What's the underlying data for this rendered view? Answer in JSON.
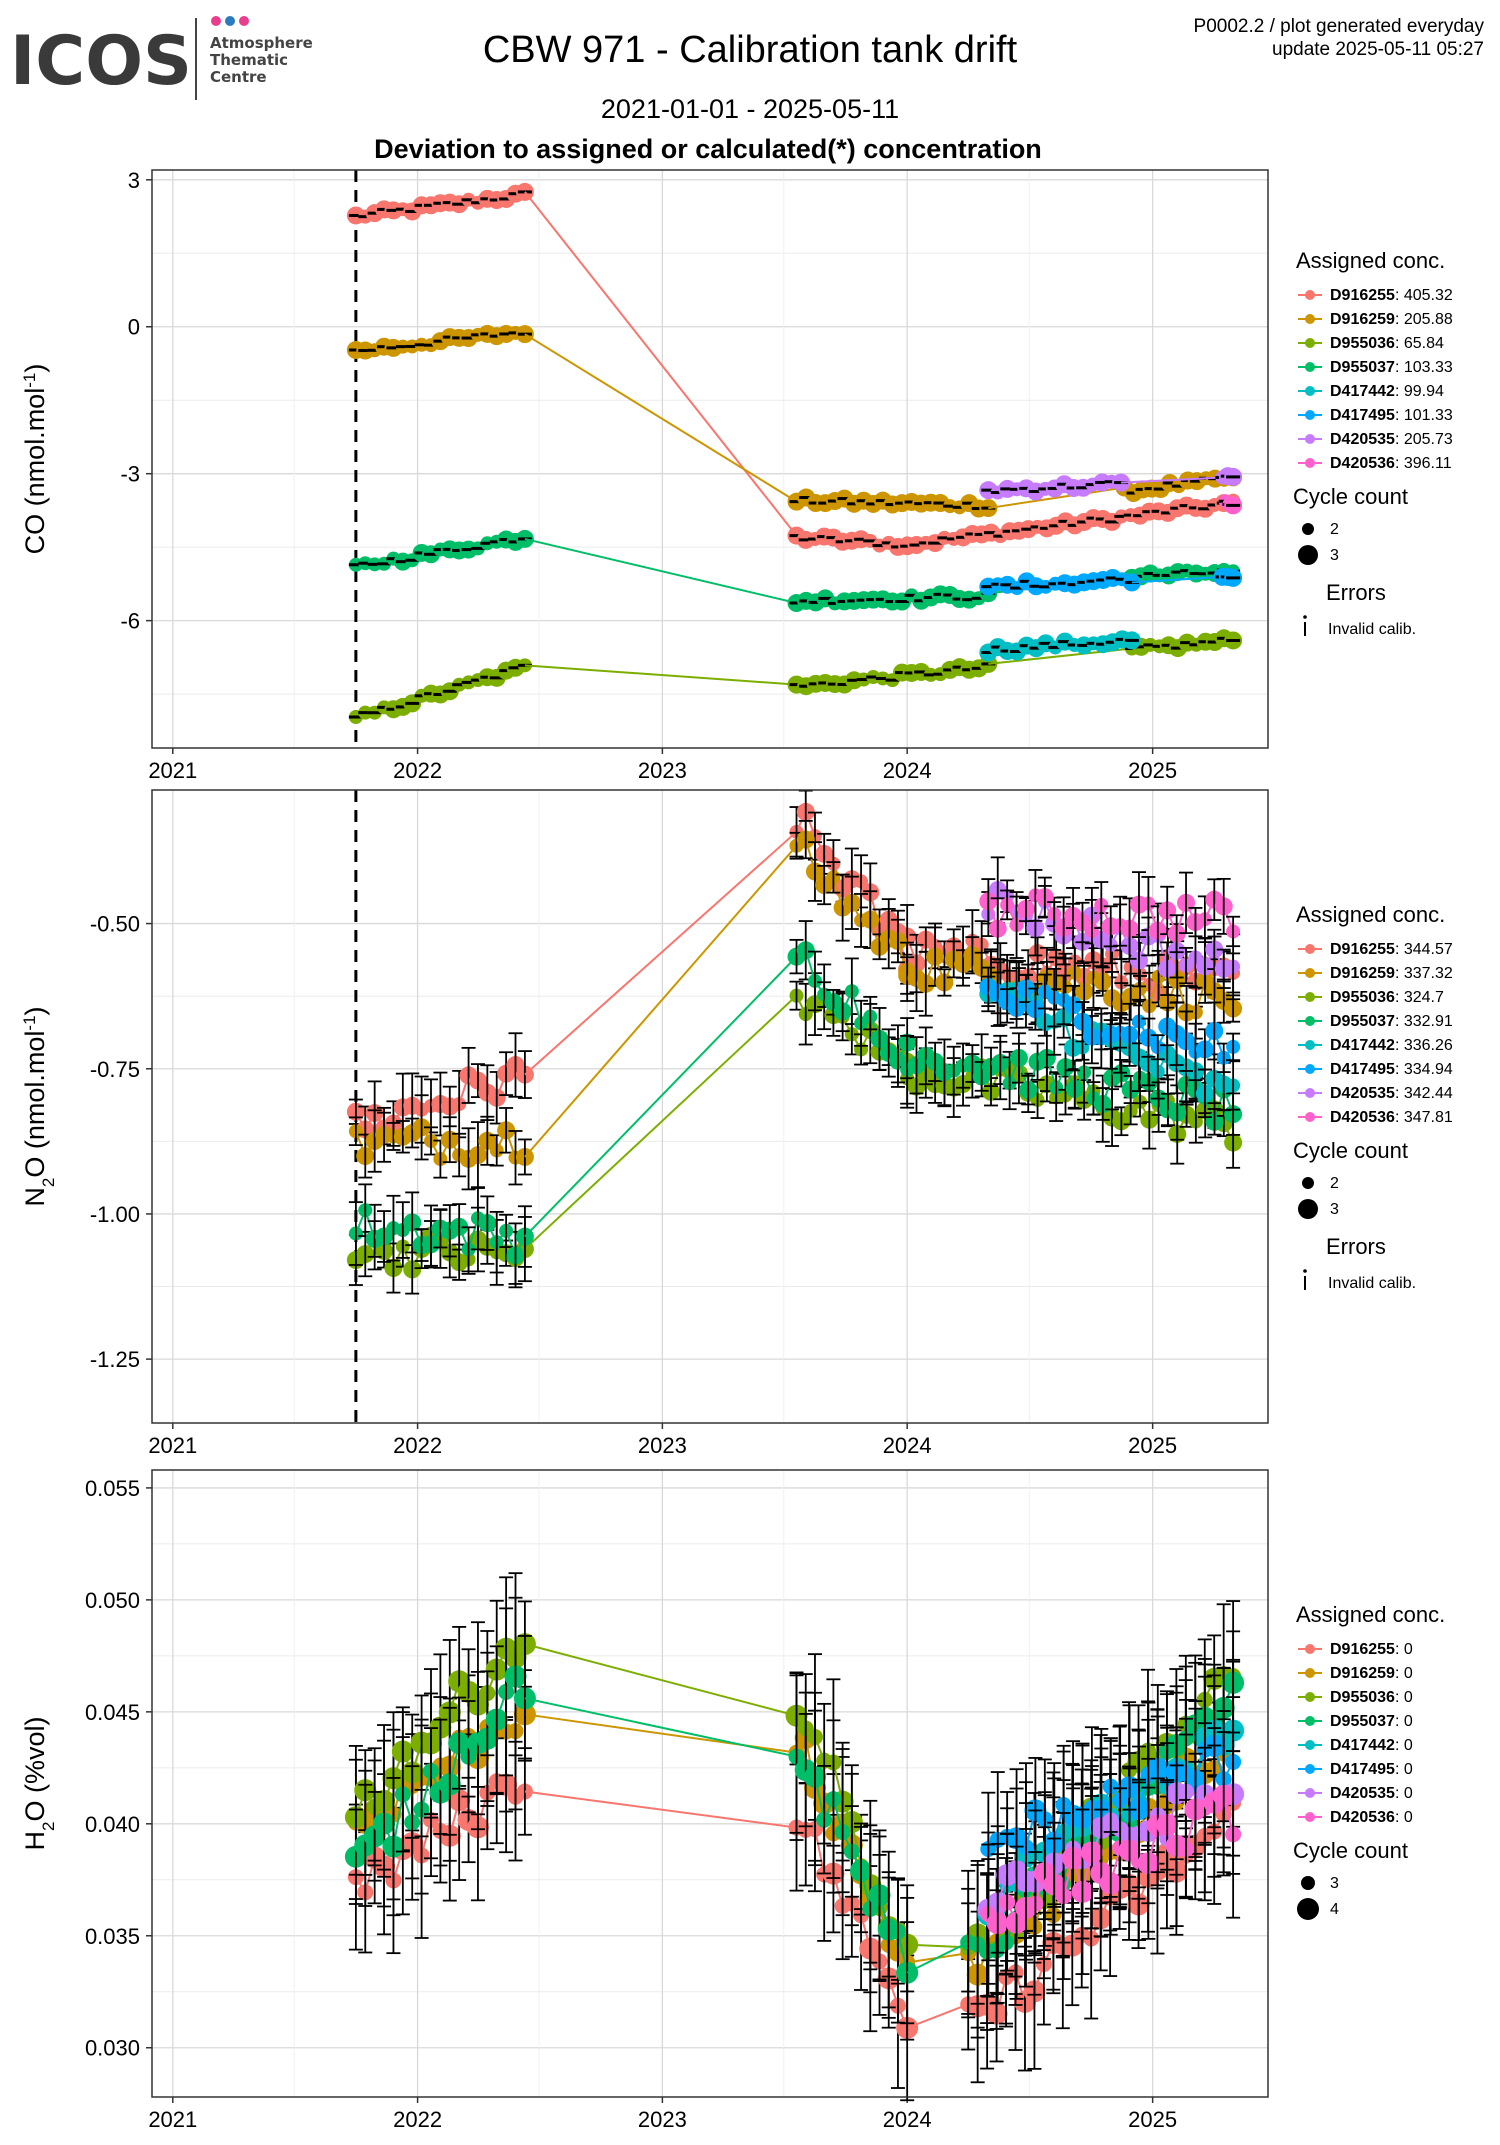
{
  "header": {
    "logo_word": "ICOS",
    "logo_sub": [
      "Atmosphere",
      "Thematic",
      "Centre"
    ],
    "title": "CBW 971 - Calibration tank drift",
    "date_range": "2021-01-01 - 2025-05-11",
    "subtitle": "Deviation to assigned or calculated(*) concentration",
    "meta_line1": "P0002.2 / plot generated everyday",
    "meta_line2": "update  2025-05-11 05:27"
  },
  "colors": {
    "D916255": "#F8766D",
    "D916259": "#CD9600",
    "D955036": "#7CAE00",
    "D955037": "#00BE67",
    "D417442": "#00BFC4",
    "D417495": "#00A9FF",
    "D420535": "#C77CFF",
    "D420536": "#FF61CC"
  },
  "legend_labels": {
    "assigned": "Assigned conc.",
    "cycle": "Cycle count",
    "errors": "Errors",
    "invalid": "Invalid calib."
  },
  "chart_data": [
    {
      "type": "scatter",
      "panel": "CO",
      "ylabel_main": "CO (nmol.mol",
      "ylabel_sup": "-1",
      "ylabel_close": ")",
      "x_ticks": [
        "2021",
        "2022",
        "2023",
        "2024",
        "2025"
      ],
      "x_range": [
        "2021-01-01",
        "2025-05-11"
      ],
      "y_ticks": [
        3,
        0,
        -3,
        -6
      ],
      "y_tick_labels": [
        "3",
        "0",
        "-3",
        "-6"
      ],
      "ylim": [
        -8.6,
        3.2
      ],
      "vline": "2021-10-01",
      "grid": true,
      "legend_position": "right",
      "cycle_counts": [
        "2",
        "3"
      ],
      "series": [
        {
          "name": "D916255",
          "assigned": "405.32",
          "segments": [
            [
              "2021-10-01",
              "2022-06-10",
              2.25,
              2.7
            ],
            [
              "2023-07-20",
              "2024-01-01",
              -4.3,
              -4.45
            ],
            [
              "2024-01-01",
              "2025-05-01",
              -4.45,
              -3.6
            ]
          ]
        },
        {
          "name": "D916259",
          "assigned": "205.88",
          "segments": [
            [
              "2021-10-01",
              "2022-06-10",
              -0.5,
              -0.1
            ],
            [
              "2023-07-20",
              "2024-05-01",
              -3.55,
              -3.65
            ],
            [
              "2024-11-20",
              "2025-05-01",
              -3.35,
              -3.1
            ]
          ]
        },
        {
          "name": "D955036",
          "assigned": "65.84",
          "segments": [
            [
              "2021-10-01",
              "2022-06-10",
              -8.0,
              -6.95
            ],
            [
              "2023-07-20",
              "2024-05-01",
              -7.35,
              -6.95
            ],
            [
              "2024-12-01",
              "2025-05-01",
              -6.6,
              -6.4
            ]
          ]
        },
        {
          "name": "D955037",
          "assigned": "103.33",
          "segments": [
            [
              "2021-10-01",
              "2022-06-10",
              -4.9,
              -4.3
            ],
            [
              "2023-07-20",
              "2024-05-01",
              -5.6,
              -5.5
            ],
            [
              "2024-12-01",
              "2025-05-01",
              -5.1,
              -5.0
            ]
          ]
        },
        {
          "name": "D417442",
          "assigned": "99.94",
          "segments": [
            [
              "2024-05-01",
              "2024-12-01",
              -6.6,
              -6.4
            ]
          ]
        },
        {
          "name": "D417495",
          "assigned": "101.33",
          "segments": [
            [
              "2024-05-01",
              "2024-12-01",
              -5.3,
              -5.15
            ],
            [
              "2025-04-15",
              "2025-05-01",
              -5.1,
              -5.1
            ]
          ]
        },
        {
          "name": "D420535",
          "assigned": "205.73",
          "segments": [
            [
              "2024-05-01",
              "2024-11-15",
              -3.35,
              -3.2
            ],
            [
              "2025-04-15",
              "2025-05-01",
              -3.1,
              -3.1
            ]
          ]
        },
        {
          "name": "D420536",
          "assigned": "396.11",
          "segments": [
            [
              "2025-04-20",
              "2025-05-01",
              -3.6,
              -3.6
            ]
          ]
        }
      ]
    },
    {
      "type": "scatter",
      "panel": "N2O",
      "ylabel_main": "N",
      "ylabel_sub": "2",
      "ylabel_rest": "O (nmol.mol",
      "ylabel_sup": "-1",
      "ylabel_close": ")",
      "x_ticks": [
        "2021",
        "2022",
        "2023",
        "2024",
        "2025"
      ],
      "x_range": [
        "2021-01-01",
        "2025-05-11"
      ],
      "y_ticks": [
        -0.5,
        -0.75,
        -1.0,
        -1.25
      ],
      "y_tick_labels": [
        "-0.50",
        "-0.75",
        "-1.00",
        "-1.25"
      ],
      "ylim": [
        -1.36,
        -0.27
      ],
      "vline": "2021-10-01",
      "grid": true,
      "legend_position": "right",
      "cycle_counts": [
        "2",
        "3"
      ],
      "series": [
        {
          "name": "D916255",
          "assigned": "344.57",
          "segments": [
            [
              "2021-10-01",
              "2022-06-10",
              -0.85,
              -0.76
            ],
            [
              "2023-07-20",
              "2024-01-01",
              -0.32,
              -0.55
            ],
            [
              "2024-01-01",
              "2025-05-01",
              -0.55,
              -0.6
            ]
          ]
        },
        {
          "name": "D916259",
          "assigned": "337.32",
          "segments": [
            [
              "2021-10-01",
              "2022-06-10",
              -0.88,
              -0.87
            ],
            [
              "2023-07-20",
              "2024-01-01",
              -0.37,
              -0.57
            ],
            [
              "2024-01-01",
              "2025-05-01",
              -0.57,
              -0.63
            ]
          ]
        },
        {
          "name": "D955036",
          "assigned": "324.7",
          "segments": [
            [
              "2021-10-01",
              "2022-06-10",
              -1.06,
              -1.07
            ],
            [
              "2023-07-20",
              "2024-01-01",
              -0.62,
              -0.75
            ],
            [
              "2024-01-01",
              "2025-05-01",
              -0.75,
              -0.85
            ]
          ]
        },
        {
          "name": "D955037",
          "assigned": "332.91",
          "segments": [
            [
              "2021-10-01",
              "2022-06-10",
              -1.02,
              -1.04
            ],
            [
              "2023-07-20",
              "2024-01-01",
              -0.55,
              -0.72
            ],
            [
              "2024-01-01",
              "2025-05-01",
              -0.72,
              -0.82
            ]
          ]
        },
        {
          "name": "D417442",
          "assigned": "336.26",
          "segments": [
            [
              "2024-05-01",
              "2025-05-01",
              -0.62,
              -0.8
            ]
          ]
        },
        {
          "name": "D417495",
          "assigned": "334.94",
          "segments": [
            [
              "2024-05-01",
              "2025-05-01",
              -0.62,
              -0.72
            ]
          ]
        },
        {
          "name": "D420535",
          "assigned": "342.44",
          "segments": [
            [
              "2024-05-01",
              "2025-05-01",
              -0.46,
              -0.58
            ]
          ]
        },
        {
          "name": "D420536",
          "assigned": "347.81",
          "segments": [
            [
              "2024-05-01",
              "2025-05-01",
              -0.48,
              -0.49
            ]
          ]
        }
      ]
    },
    {
      "type": "scatter",
      "panel": "H2O",
      "ylabel_main": "H",
      "ylabel_sub": "2",
      "ylabel_rest": "O (%vol)",
      "x_ticks": [
        "2021",
        "2022",
        "2023",
        "2024",
        "2025"
      ],
      "x_range": [
        "2021-01-01",
        "2025-05-11"
      ],
      "y_ticks": [
        0.055,
        0.05,
        0.045,
        0.04,
        0.035,
        0.03
      ],
      "y_tick_labels": [
        "0.055",
        "0.050",
        "0.045",
        "0.040",
        "0.035",
        "0.030"
      ],
      "ylim": [
        0.0278,
        0.0558
      ],
      "grid": true,
      "legend_position": "right",
      "cycle_counts": [
        "3",
        "4"
      ],
      "series": [
        {
          "name": "D916255",
          "assigned": "0",
          "segments": [
            [
              "2021-10-01",
              "2022-06-10",
              0.037,
              0.0422
            ],
            [
              "2023-07-20",
              "2024-01-01",
              0.0405,
              0.0315
            ],
            [
              "2024-04-01",
              "2025-05-01",
              0.031,
              0.0403
            ]
          ]
        },
        {
          "name": "D916259",
          "assigned": "0",
          "segments": [
            [
              "2021-10-01",
              "2022-06-10",
              0.04,
              0.0452
            ],
            [
              "2023-07-20",
              "2024-01-01",
              0.044,
              0.0335
            ],
            [
              "2024-04-01",
              "2025-05-01",
              0.0335,
              0.044
            ]
          ]
        },
        {
          "name": "D955036",
          "assigned": "0",
          "segments": [
            [
              "2021-10-01",
              "2022-06-10",
              0.0405,
              0.0485
            ],
            [
              "2023-07-20",
              "2024-01-01",
              0.0458,
              0.0338
            ],
            [
              "2024-04-01",
              "2025-05-01",
              0.0338,
              0.0465
            ]
          ]
        },
        {
          "name": "D955037",
          "assigned": "0",
          "segments": [
            [
              "2021-10-01",
              "2022-06-10",
              0.038,
              0.0465
            ],
            [
              "2023-07-20",
              "2024-01-01",
              0.0435,
              0.0338
            ],
            [
              "2024-04-01",
              "2025-05-01",
              0.0338,
              0.0455
            ]
          ]
        },
        {
          "name": "D417442",
          "assigned": "0",
          "segments": [
            [
              "2024-05-01",
              "2025-05-01",
              0.0364,
              0.044
            ]
          ]
        },
        {
          "name": "D417495",
          "assigned": "0",
          "segments": [
            [
              "2024-05-01",
              "2025-05-01",
              0.039,
              0.043
            ]
          ]
        },
        {
          "name": "D420535",
          "assigned": "0",
          "segments": [
            [
              "2024-05-01",
              "2025-05-01",
              0.037,
              0.0415
            ]
          ]
        },
        {
          "name": "D420536",
          "assigned": "0",
          "segments": [
            [
              "2024-05-01",
              "2025-05-01",
              0.036,
              0.0405
            ]
          ]
        }
      ]
    }
  ]
}
